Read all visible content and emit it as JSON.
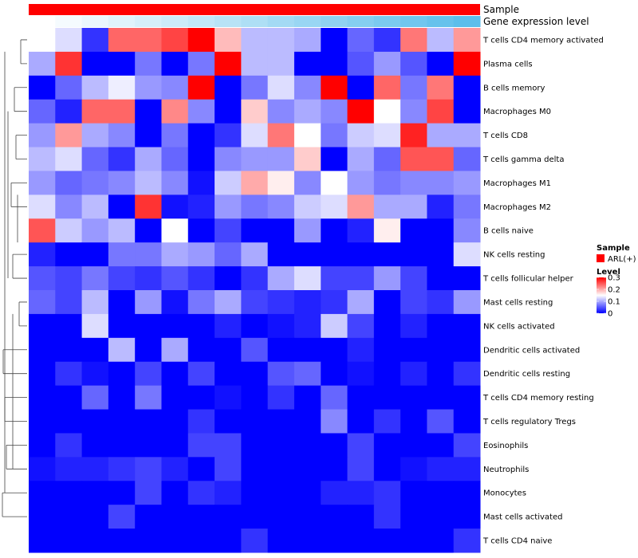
{
  "chart_data": {
    "type": "heatmap",
    "annotations": {
      "sample_label": "Sample",
      "expression_label": "Gene expression level",
      "sample_color": "#ff0000"
    },
    "rows": [
      "T cells CD4 memory activated",
      "Plasma cells",
      "B cells memory",
      "Macrophages M0",
      "T cells CD8",
      "T cells gamma delta",
      "Macrophages M1",
      "Macrophages M2",
      "B cells naive",
      "NK cells resting",
      "T cells follicular helper",
      "Mast cells resting",
      "NK cells activated",
      "Dendritic cells activated",
      "Dendritic cells resting",
      "T cells CD4 memory resting",
      "T cells regulatory  Tregs",
      "Eosinophils",
      "Neutrophils",
      "Monocytes",
      "Mast cells activated",
      "T cells CD4 naive"
    ],
    "values": [
      [
        0.15,
        0.13,
        0.03,
        0.24,
        0.24,
        0.26,
        0.3,
        0.19,
        0.11,
        0.11,
        0.1,
        0.0,
        0.06,
        0.03,
        0.23,
        0.11,
        0.21
      ],
      [
        0.1,
        0.27,
        0.0,
        0.0,
        0.07,
        0.0,
        0.07,
        0.3,
        0.11,
        0.11,
        0.0,
        0.0,
        0.05,
        0.09,
        0.05,
        0.0,
        0.3
      ],
      [
        0.0,
        0.06,
        0.11,
        0.14,
        0.09,
        0.08,
        0.3,
        0.0,
        0.07,
        0.13,
        0.08,
        0.3,
        0.0,
        0.24,
        0.07,
        0.23,
        0.0
      ],
      [
        0.06,
        0.02,
        0.24,
        0.24,
        0.0,
        0.22,
        0.08,
        0.0,
        0.18,
        0.08,
        0.1,
        0.08,
        0.3,
        0.15,
        0.08,
        0.26,
        0.0
      ],
      [
        0.09,
        0.21,
        0.1,
        0.08,
        0.0,
        0.07,
        0.0,
        0.03,
        0.13,
        0.23,
        0.15,
        0.07,
        0.12,
        0.13,
        0.28,
        0.1,
        0.1
      ],
      [
        0.11,
        0.13,
        0.06,
        0.03,
        0.1,
        0.06,
        0.0,
        0.08,
        0.09,
        0.09,
        0.18,
        0.0,
        0.1,
        0.06,
        0.25,
        0.25,
        0.06
      ],
      [
        0.09,
        0.06,
        0.07,
        0.08,
        0.11,
        0.08,
        0.01,
        0.12,
        0.2,
        0.16,
        0.08,
        0.15,
        0.09,
        0.07,
        0.08,
        0.08,
        0.09
      ],
      [
        0.13,
        0.08,
        0.11,
        0.0,
        0.27,
        0.01,
        0.02,
        0.09,
        0.07,
        0.08,
        0.12,
        0.13,
        0.21,
        0.1,
        0.1,
        0.02,
        0.07
      ],
      [
        0.25,
        0.12,
        0.09,
        0.11,
        0.0,
        0.15,
        0.0,
        0.04,
        0.0,
        0.0,
        0.09,
        0.0,
        0.02,
        0.16,
        0.0,
        0.0,
        0.08
      ],
      [
        0.02,
        0.0,
        0.0,
        0.07,
        0.07,
        0.1,
        0.09,
        0.06,
        0.1,
        0.0,
        0.0,
        0.0,
        0.0,
        0.0,
        0.0,
        0.0,
        0.13
      ],
      [
        0.05,
        0.04,
        0.07,
        0.04,
        0.03,
        0.05,
        0.03,
        0.0,
        0.03,
        0.1,
        0.13,
        0.04,
        0.04,
        0.09,
        0.04,
        0.0,
        0.0
      ],
      [
        0.06,
        0.04,
        0.11,
        0.0,
        0.09,
        0.01,
        0.07,
        0.1,
        0.04,
        0.03,
        0.02,
        0.03,
        0.1,
        0.0,
        0.04,
        0.03,
        0.09
      ],
      [
        0.0,
        0.0,
        0.13,
        0.0,
        0.0,
        0.0,
        0.0,
        0.02,
        0.0,
        0.01,
        0.02,
        0.12,
        0.04,
        0.0,
        0.02,
        0.0,
        0.0
      ],
      [
        0.0,
        0.0,
        0.0,
        0.11,
        0.0,
        0.1,
        0.0,
        0.0,
        0.05,
        0.0,
        0.0,
        0.0,
        0.02,
        0.0,
        0.0,
        0.0,
        0.0
      ],
      [
        0.0,
        0.03,
        0.01,
        0.0,
        0.04,
        0.0,
        0.04,
        0.0,
        0.0,
        0.05,
        0.06,
        0.0,
        0.01,
        0.0,
        0.02,
        0.0,
        0.03
      ],
      [
        0.0,
        0.0,
        0.06,
        0.0,
        0.07,
        0.0,
        0.0,
        0.01,
        0.0,
        0.03,
        0.0,
        0.06,
        0.0,
        0.0,
        0.0,
        0.0,
        0.0
      ],
      [
        0.0,
        0.0,
        0.0,
        0.0,
        0.0,
        0.0,
        0.03,
        0.0,
        0.0,
        0.0,
        0.0,
        0.08,
        0.0,
        0.03,
        0.0,
        0.05,
        0.0
      ],
      [
        0.0,
        0.03,
        0.0,
        0.0,
        0.0,
        0.0,
        0.04,
        0.04,
        0.0,
        0.0,
        0.0,
        0.0,
        0.04,
        0.0,
        0.0,
        0.0,
        0.04
      ],
      [
        0.01,
        0.02,
        0.02,
        0.03,
        0.04,
        0.02,
        0.0,
        0.04,
        0.0,
        0.0,
        0.0,
        0.0,
        0.04,
        0.0,
        0.01,
        0.02,
        0.02
      ],
      [
        0.0,
        0.0,
        0.0,
        0.0,
        0.04,
        0.0,
        0.03,
        0.02,
        0.0,
        0.0,
        0.0,
        0.02,
        0.02,
        0.03,
        0.0,
        0.0,
        0.0
      ],
      [
        0.0,
        0.0,
        0.0,
        0.04,
        0.0,
        0.0,
        0.0,
        0.0,
        0.0,
        0.0,
        0.0,
        0.0,
        0.0,
        0.03,
        0.0,
        0.0,
        0.0
      ],
      [
        0.0,
        0.0,
        0.0,
        0.0,
        0.0,
        0.0,
        0.0,
        0.0,
        0.03,
        0.0,
        0.0,
        0.0,
        0.0,
        0.0,
        0.0,
        0.0,
        0.03
      ]
    ],
    "scale": {
      "min": 0,
      "max": 0.3,
      "low_color": "#0000ff",
      "mid_color": "#ffffff",
      "high_color": "#ff0000",
      "ticks": [
        0,
        0.1,
        0.2,
        0.3
      ],
      "tick_labels": [
        "0",
        "0.1",
        "0.2",
        "0.3"
      ]
    },
    "legend": {
      "sample_title": "Sample",
      "sample_entry": "ARL(+)",
      "level_title": "Level"
    }
  }
}
